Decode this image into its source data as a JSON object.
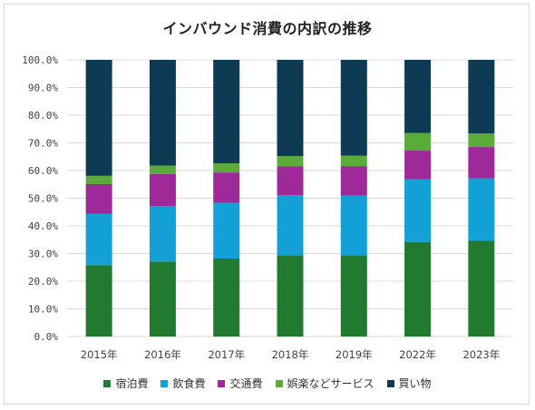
{
  "chart_data": {
    "type": "bar",
    "stacked": true,
    "title": "インバウンド消費の内訳の推移",
    "categories": [
      "2015年",
      "2016年",
      "2017年",
      "2018年",
      "2019年",
      "2022年",
      "2023年"
    ],
    "ylim": [
      0,
      100
    ],
    "ytick_labels": [
      "0.0%",
      "10.0%",
      "20.0%",
      "30.0%",
      "40.0%",
      "50.0%",
      "60.0%",
      "70.0%",
      "80.0%",
      "90.0%",
      "100.0%"
    ],
    "grid": true,
    "legend_position": "bottom",
    "series": [
      {
        "name": "宿泊費",
        "color": "#217a30",
        "values": [
          25.8,
          27.1,
          28.2,
          29.4,
          29.4,
          34.2,
          34.6
        ]
      },
      {
        "name": "飲食費",
        "color": "#12a0d7",
        "values": [
          18.5,
          20.1,
          20.1,
          21.7,
          21.6,
          22.7,
          22.6
        ]
      },
      {
        "name": "交通費",
        "color": "#9e2a99",
        "values": [
          10.8,
          11.6,
          11.0,
          10.4,
          10.6,
          10.3,
          11.3
        ]
      },
      {
        "name": "娯楽などサービス",
        "color": "#5aab3a",
        "values": [
          3.0,
          3.0,
          3.3,
          3.7,
          3.8,
          6.4,
          4.9
        ]
      },
      {
        "name": "買い物",
        "color": "#0e3a53",
        "values": [
          41.9,
          38.2,
          37.4,
          34.8,
          34.6,
          26.4,
          26.6
        ]
      }
    ]
  }
}
